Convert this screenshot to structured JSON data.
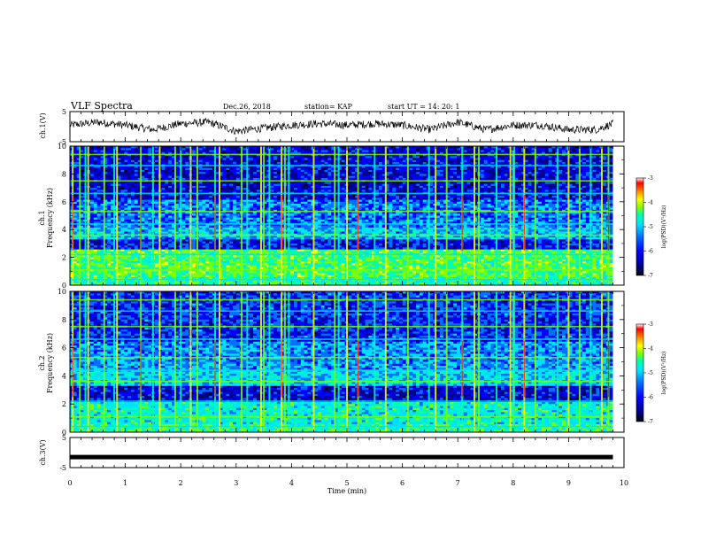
{
  "header": {
    "title": "VLF Spectra",
    "date": "Dec.26, 2018",
    "station": "station= KAP",
    "start": "start  UT =   14: 20: 1"
  },
  "colors": {
    "frame": "#000000",
    "colormap": [
      "#000000",
      "#00008b",
      "#0000ff",
      "#0070ff",
      "#00e0ff",
      "#00ffb0",
      "#80ff00",
      "#ffff00",
      "#ff8000",
      "#ff0000",
      "#ffffff"
    ]
  },
  "chart_data": [
    {
      "type": "line",
      "name": "ch1-waveform",
      "ylabel": "ch.1(V)",
      "ylim": [
        -5,
        5
      ],
      "yticks": [
        "5",
        "-5"
      ],
      "xlim": [
        0,
        10
      ],
      "note_values": "noisy waveform fluctuating roughly between -3 and 3 V",
      "x": [
        0,
        0.5,
        1,
        1.5,
        2,
        2.5,
        3,
        3.5,
        4,
        4.5,
        5,
        5.5,
        6,
        6.5,
        7,
        7.5,
        8,
        8.5,
        9,
        9.5,
        9.8
      ],
      "y": [
        0.5,
        1.5,
        0.5,
        -1.0,
        1.0,
        1.5,
        -1.5,
        -0.5,
        0.5,
        1.0,
        0.5,
        1.0,
        0.5,
        -1.0,
        1.5,
        -1.0,
        0.5,
        0.5,
        -1.0,
        -1.0,
        1.0
      ]
    },
    {
      "type": "heatmap",
      "name": "ch1-spectrogram",
      "ylabel_top": "ch.1",
      "ylabel": "Frequency (kHz)",
      "ylim": [
        0,
        10
      ],
      "yticks": [
        "0",
        "2",
        "4",
        "6",
        "8",
        "10"
      ],
      "xlim": [
        0,
        10
      ],
      "colorbar": {
        "label": "log(PSD)(V²/Hz)",
        "range": [
          -7,
          -3
        ],
        "ticks": [
          "-3",
          "-4",
          "-5",
          "-6",
          "-7"
        ]
      }
    },
    {
      "type": "heatmap",
      "name": "ch2-spectrogram",
      "ylabel_top": "ch.2",
      "ylabel": "Frequency (kHz)",
      "ylim": [
        0,
        10
      ],
      "yticks": [
        "0",
        "2",
        "4",
        "6",
        "8",
        "10"
      ],
      "xlim": [
        0,
        10
      ],
      "colorbar": {
        "label": "log(PSD)(V²/Hz)",
        "range": [
          -7,
          -3
        ],
        "ticks": [
          "-3",
          "-4",
          "-5",
          "-6",
          "-7"
        ]
      }
    },
    {
      "type": "line",
      "name": "ch3-waveform",
      "ylabel": "ch.3(V)",
      "ylim": [
        -5,
        5
      ],
      "yticks": [
        "5",
        "-5"
      ],
      "xlim": [
        0,
        9.8
      ],
      "x": [
        0,
        9.8
      ],
      "y": [
        -1.5,
        -1.5
      ]
    }
  ],
  "xaxis": {
    "label": "Time (min)",
    "ticks": [
      "0",
      "1",
      "2",
      "3",
      "4",
      "5",
      "6",
      "7",
      "8",
      "9",
      "10"
    ]
  },
  "common_vertical_lines_min": [
    0.05,
    0.18,
    0.28,
    0.33,
    0.62,
    0.8,
    0.85,
    1.28,
    1.5,
    1.62,
    1.9,
    2.0,
    2.18,
    2.3,
    2.62,
    2.7,
    3.1,
    3.2,
    3.45,
    3.5,
    3.6,
    3.82,
    3.88,
    3.95,
    4.4,
    4.78,
    4.85,
    5.0,
    5.2,
    5.5,
    5.7,
    6.1,
    6.48,
    6.6,
    6.8,
    7.08,
    7.3,
    7.38,
    7.7,
    7.95,
    8.0,
    8.02,
    8.2,
    8.4,
    8.8,
    9.0,
    9.2,
    9.4,
    9.6,
    9.72
  ]
}
